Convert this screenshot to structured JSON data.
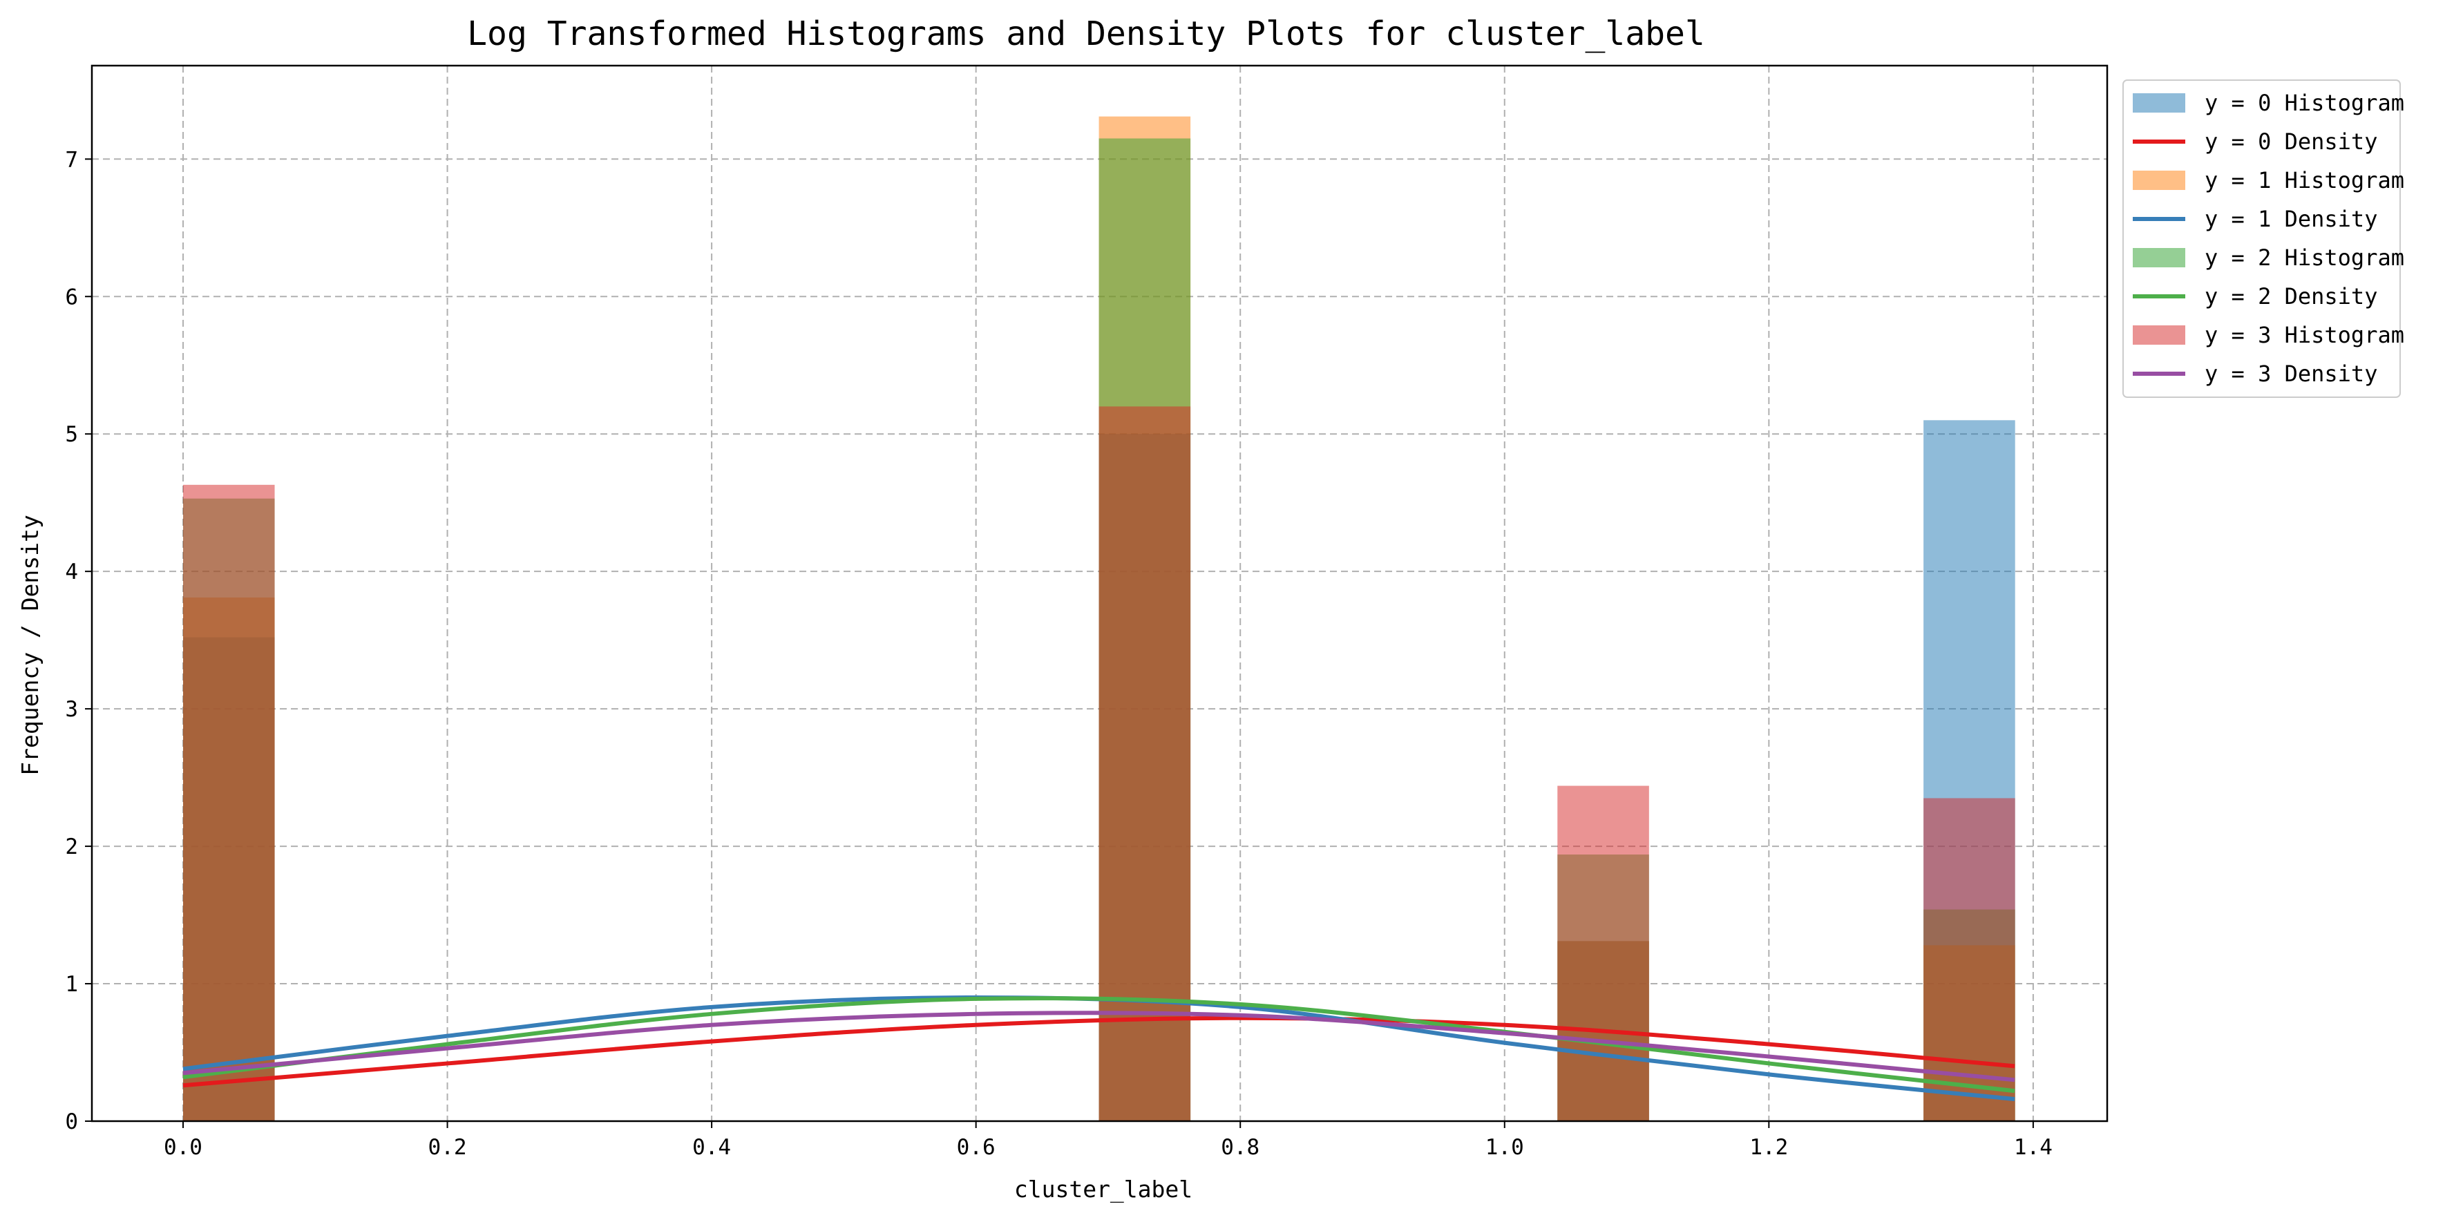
{
  "chart_data": {
    "type": "bar",
    "title": "Log Transformed Histograms and Density Plots for cluster_label",
    "xlabel": "cluster_label",
    "ylabel": "Frequency / Density",
    "xlim": [
      -0.069,
      1.456
    ],
    "ylim": [
      0,
      7.68
    ],
    "xticks": [
      "0.0",
      "0.2",
      "0.4",
      "0.6",
      "0.8",
      "1.0",
      "1.2",
      "1.4"
    ],
    "yticks": [
      "0",
      "1",
      "2",
      "3",
      "4",
      "5",
      "6",
      "7"
    ],
    "grid": true,
    "legend_position": "outside-top-right",
    "bin_width": 0.0693,
    "histograms": [
      {
        "name": "y = 0 Histogram",
        "color": "#1f77b4",
        "bins": [
          [
            0.0,
            3.52
          ],
          [
            0.693,
            5.0
          ],
          [
            1.04,
            1.31
          ],
          [
            1.317,
            5.1
          ]
        ]
      },
      {
        "name": "y = 1 Histogram",
        "color": "#ff7f0e",
        "bins": [
          [
            0.0,
            3.81
          ],
          [
            0.693,
            7.31
          ],
          [
            1.04,
            1.31
          ],
          [
            1.317,
            1.28
          ]
        ]
      },
      {
        "name": "y = 2 Histogram",
        "color": "#2ca02c",
        "bins": [
          [
            0.0,
            4.53
          ],
          [
            0.693,
            7.15
          ],
          [
            1.04,
            1.94
          ],
          [
            1.317,
            1.54
          ]
        ]
      },
      {
        "name": "y = 3 Histogram",
        "color": "#d62728",
        "bins": [
          [
            0.0,
            4.63
          ],
          [
            0.693,
            5.2
          ],
          [
            1.04,
            2.44
          ],
          [
            1.317,
            2.35
          ]
        ]
      }
    ],
    "densities": [
      {
        "name": "y = 0 Density",
        "color": "#e41a1c",
        "x": [
          0.0,
          0.2,
          0.4,
          0.6,
          0.8,
          1.0,
          1.2,
          1.386
        ],
        "y": [
          0.26,
          0.42,
          0.58,
          0.7,
          0.75,
          0.7,
          0.56,
          0.4
        ]
      },
      {
        "name": "y = 1 Density",
        "color": "#377eb8",
        "x": [
          0.0,
          0.2,
          0.4,
          0.6,
          0.8,
          1.0,
          1.2,
          1.386
        ],
        "y": [
          0.38,
          0.62,
          0.83,
          0.9,
          0.83,
          0.57,
          0.34,
          0.16
        ]
      },
      {
        "name": "y = 2 Density",
        "color": "#4daf4a",
        "x": [
          0.0,
          0.2,
          0.4,
          0.6,
          0.8,
          1.0,
          1.2,
          1.386
        ],
        "y": [
          0.32,
          0.56,
          0.78,
          0.89,
          0.85,
          0.65,
          0.42,
          0.22
        ]
      },
      {
        "name": "y = 3 Density",
        "color": "#984ea3",
        "x": [
          0.0,
          0.2,
          0.4,
          0.6,
          0.8,
          1.0,
          1.2,
          1.386
        ],
        "y": [
          0.35,
          0.53,
          0.7,
          0.78,
          0.77,
          0.64,
          0.47,
          0.3
        ]
      }
    ],
    "legend": [
      "y = 0 Histogram",
      "y = 0 Density",
      "y = 1 Histogram",
      "y = 1 Density",
      "y = 2 Histogram",
      "y = 2 Density",
      "y = 3 Histogram",
      "y = 3 Density"
    ]
  }
}
